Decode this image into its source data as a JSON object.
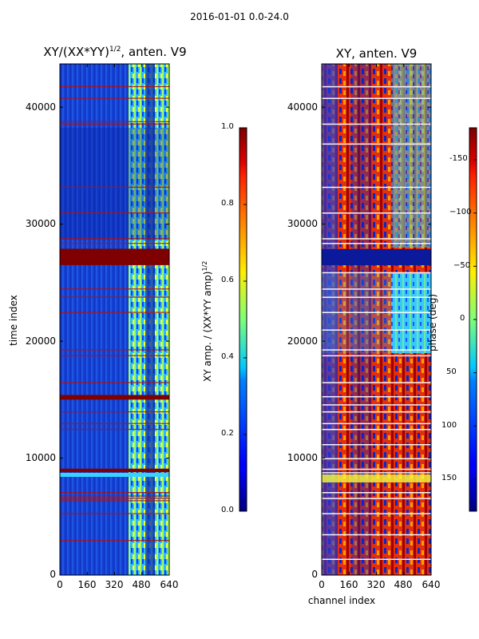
{
  "figure": {
    "suptitle": "2016-01-01 0.0-24.0",
    "xlabel": "channel index",
    "ylabel": "time index"
  },
  "chart_data": [
    {
      "type": "heatmap",
      "title": "XY/(XX*YY)",
      "title_sup": "1/2",
      "title_suffix": ", anten. V9",
      "xlabel": "channel index",
      "ylabel": "time index",
      "xlim": [
        0,
        640
      ],
      "ylim": [
        0,
        43700
      ],
      "xticks": [
        "0",
        "160",
        "320",
        "480",
        "640"
      ],
      "yticks": [
        "0",
        "10000",
        "20000",
        "30000",
        "40000"
      ],
      "colorbar": {
        "label": "XY amp. / (XX*YY amp)",
        "label_sup": "1/2",
        "range": [
          0.0,
          1.0
        ],
        "ticks": [
          "0.0",
          "0.2",
          "0.4",
          "0.6",
          "0.8",
          "1.0"
        ],
        "colormap": "jet"
      },
      "saturated_time_bands": [
        [
          26500,
          27900
        ],
        [
          15000,
          15400
        ],
        [
          8800,
          9100
        ]
      ],
      "flag_lines_time": [
        3000,
        5300,
        6400,
        6600,
        6800,
        7100,
        12500,
        13000,
        14000,
        16500,
        18800,
        19300,
        22500,
        23800,
        24500,
        28400,
        28800,
        31000,
        33200,
        38600,
        38800,
        40800,
        41800
      ],
      "bright_channel_range": [
        400,
        600
      ]
    },
    {
      "type": "heatmap",
      "title": "XY, anten. V9",
      "xlabel": "channel index",
      "ylabel": "time index",
      "xlim": [
        0,
        640
      ],
      "ylim": [
        0,
        43700
      ],
      "xticks": [
        "0",
        "160",
        "320",
        "480",
        "640"
      ],
      "yticks": [
        "0",
        "10000",
        "20000",
        "30000",
        "40000"
      ],
      "colorbar": {
        "label": "phase (deg)",
        "range": [
          -180,
          180
        ],
        "ticks": [
          "-150",
          "−100",
          "−50",
          "0",
          "50",
          "100",
          "150"
        ],
        "colormap": "jet"
      },
      "flagged_time_band": [
        26500,
        27900
      ]
    }
  ]
}
